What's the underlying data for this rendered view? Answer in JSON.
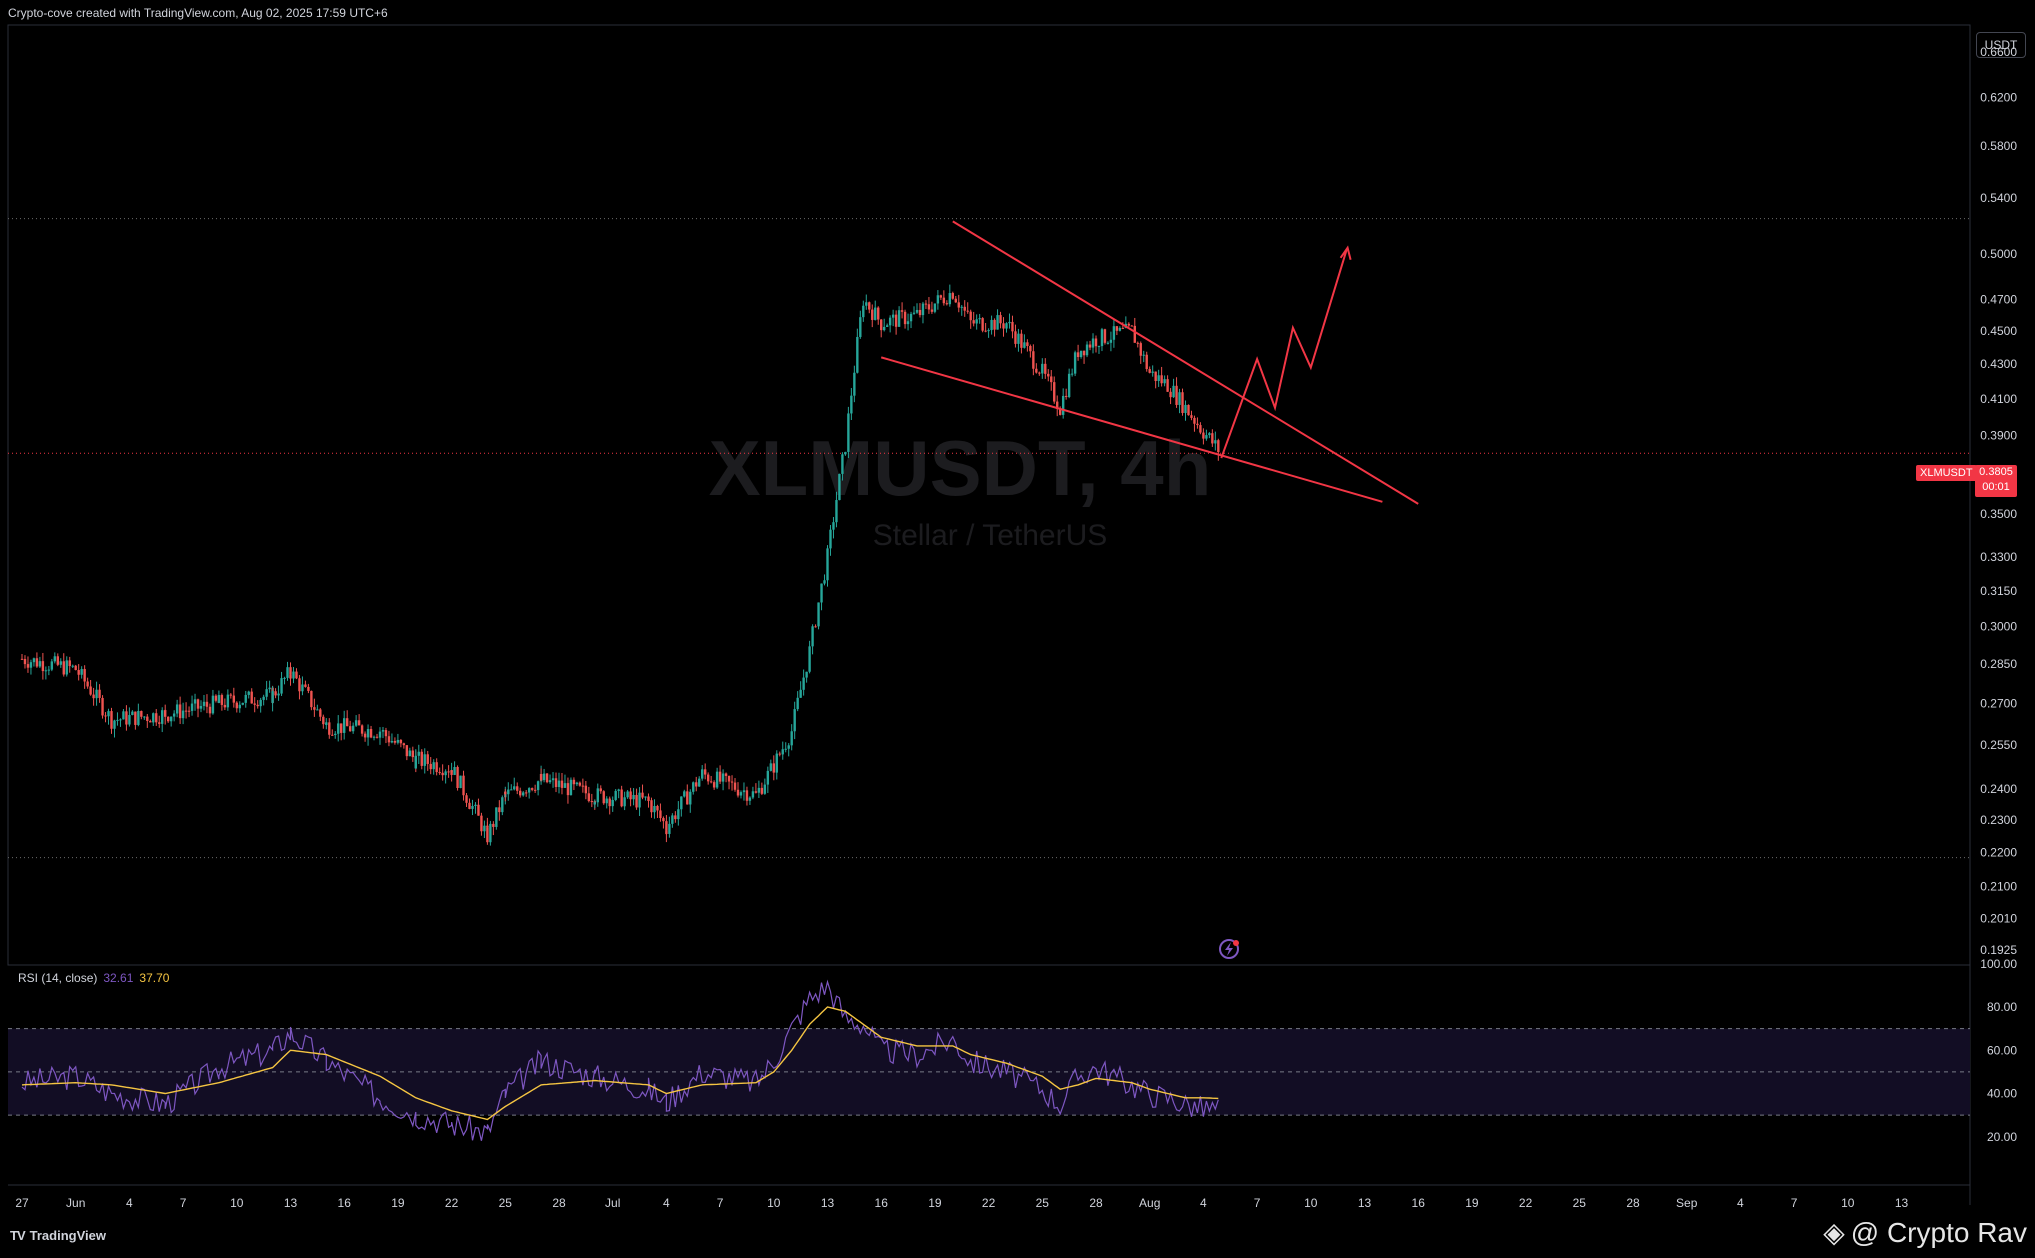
{
  "header": {
    "credit": "Crypto-cove created with TradingView.com, Aug 02, 2025 17:59 UTC+6"
  },
  "currency_button": "USDT",
  "symbol_watermark": {
    "symbol": "XLMUSDT, 4h",
    "name": "Stellar / TetherUS"
  },
  "last_price": {
    "tag": "XLMUSDT",
    "price": "0.3805",
    "countdown": "00:01",
    "color": "#f23645"
  },
  "rsi": {
    "label": "RSI (14, close)",
    "value1": "32.61",
    "value2": "37.70"
  },
  "footer": {
    "logo_text": "TradingView",
    "author": "@ Crypto Rav"
  },
  "colors": {
    "up": "#26a69a",
    "down": "#ef5350",
    "drawing": "#f23645",
    "rsi_line": "#7e57c2",
    "rsi_ma": "#f5c542"
  },
  "chart_data": [
    {
      "type": "line",
      "title": "XLMUSDT, 4h",
      "subtitle": "Stellar / TetherUS",
      "y_scale": "log",
      "ylim": [
        0.1925,
        0.68
      ],
      "y_ticks": [
        "0.6600",
        "0.6200",
        "0.5800",
        "0.5400",
        "0.5000",
        "0.4700",
        "0.4500",
        "0.4300",
        "0.4100",
        "0.3900",
        "0.3500",
        "0.3300",
        "0.3150",
        "0.3000",
        "0.2850",
        "0.2700",
        "0.2550",
        "0.2400",
        "0.2300",
        "0.2200",
        "0.2100",
        "0.2010",
        "0.1925"
      ],
      "x_ticks": [
        "27",
        "Jun",
        "4",
        "7",
        "10",
        "13",
        "16",
        "19",
        "22",
        "25",
        "28",
        "Jul",
        "4",
        "7",
        "10",
        "13",
        "16",
        "19",
        "22",
        "25",
        "28",
        "Aug",
        "4",
        "7",
        "10",
        "13",
        "16",
        "19",
        "22",
        "25",
        "28",
        "Sep",
        "4",
        "7",
        "10",
        "13"
      ],
      "series": [
        {
          "x": [
            "May 27",
            "May 30",
            "Jun 1",
            "Jun 4",
            "Jun 7",
            "Jun 10",
            "Jun 11",
            "Jun 13",
            "Jun 16",
            "Jun 18",
            "Jun 20",
            "Jun 22",
            "Jun 23",
            "Jun 25",
            "Jun 28",
            "Jul 1",
            "Jul 2",
            "Jul 4",
            "Jul 7",
            "Jul 8",
            "Jul 9",
            "Jul 10",
            "Jul 11",
            "Jul 12",
            "Jul 13",
            "Jul 14",
            "Jul 16",
            "Jul 18",
            "Jul 19",
            "Jul 21",
            "Jul 23",
            "Jul 24",
            "Jul 25",
            "Jul 26",
            "Jul 28",
            "Jul 29",
            "Jul 30",
            "Jul 31",
            "Aug 1",
            "Aug 2"
          ],
          "values": [
            0.287,
            0.283,
            0.264,
            0.266,
            0.27,
            0.273,
            0.282,
            0.262,
            0.26,
            0.25,
            0.247,
            0.225,
            0.238,
            0.243,
            0.238,
            0.236,
            0.228,
            0.245,
            0.238,
            0.248,
            0.26,
            0.29,
            0.33,
            0.385,
            0.47,
            0.455,
            0.46,
            0.475,
            0.455,
            0.455,
            0.425,
            0.405,
            0.438,
            0.445,
            0.45,
            0.425,
            0.418,
            0.405,
            0.392,
            0.3805
          ]
        }
      ],
      "horizontal_levels": [
        0.525,
        0.2185,
        0.3805
      ],
      "annotations": [
        "falling wedge",
        "projected breakout path"
      ]
    },
    {
      "type": "line",
      "title": "RSI (14, close)",
      "ylim": [
        0,
        100
      ],
      "y_ticks": [
        "100.00",
        "80.00",
        "60.00",
        "40.00",
        "20.00"
      ],
      "band": [
        30,
        70
      ],
      "series": [
        {
          "name": "RSI",
          "values": [
            45,
            48,
            40,
            35,
            52,
            60,
            68,
            55,
            38,
            30,
            26,
            22,
            40,
            55,
            48,
            42,
            36,
            50,
            45,
            55,
            70,
            84,
            90,
            75,
            72,
            60,
            58,
            65,
            55,
            50,
            42,
            35,
            48,
            52,
            44,
            40,
            38,
            35,
            33,
            32.61
          ]
        },
        {
          "name": "MA",
          "values": [
            44,
            45,
            44,
            40,
            45,
            52,
            60,
            58,
            48,
            38,
            32,
            28,
            34,
            44,
            46,
            44,
            40,
            44,
            45,
            50,
            60,
            72,
            80,
            78,
            72,
            66,
            62,
            62,
            58,
            54,
            48,
            42,
            44,
            47,
            45,
            42,
            40,
            38,
            38,
            37.7
          ]
        }
      ]
    }
  ]
}
